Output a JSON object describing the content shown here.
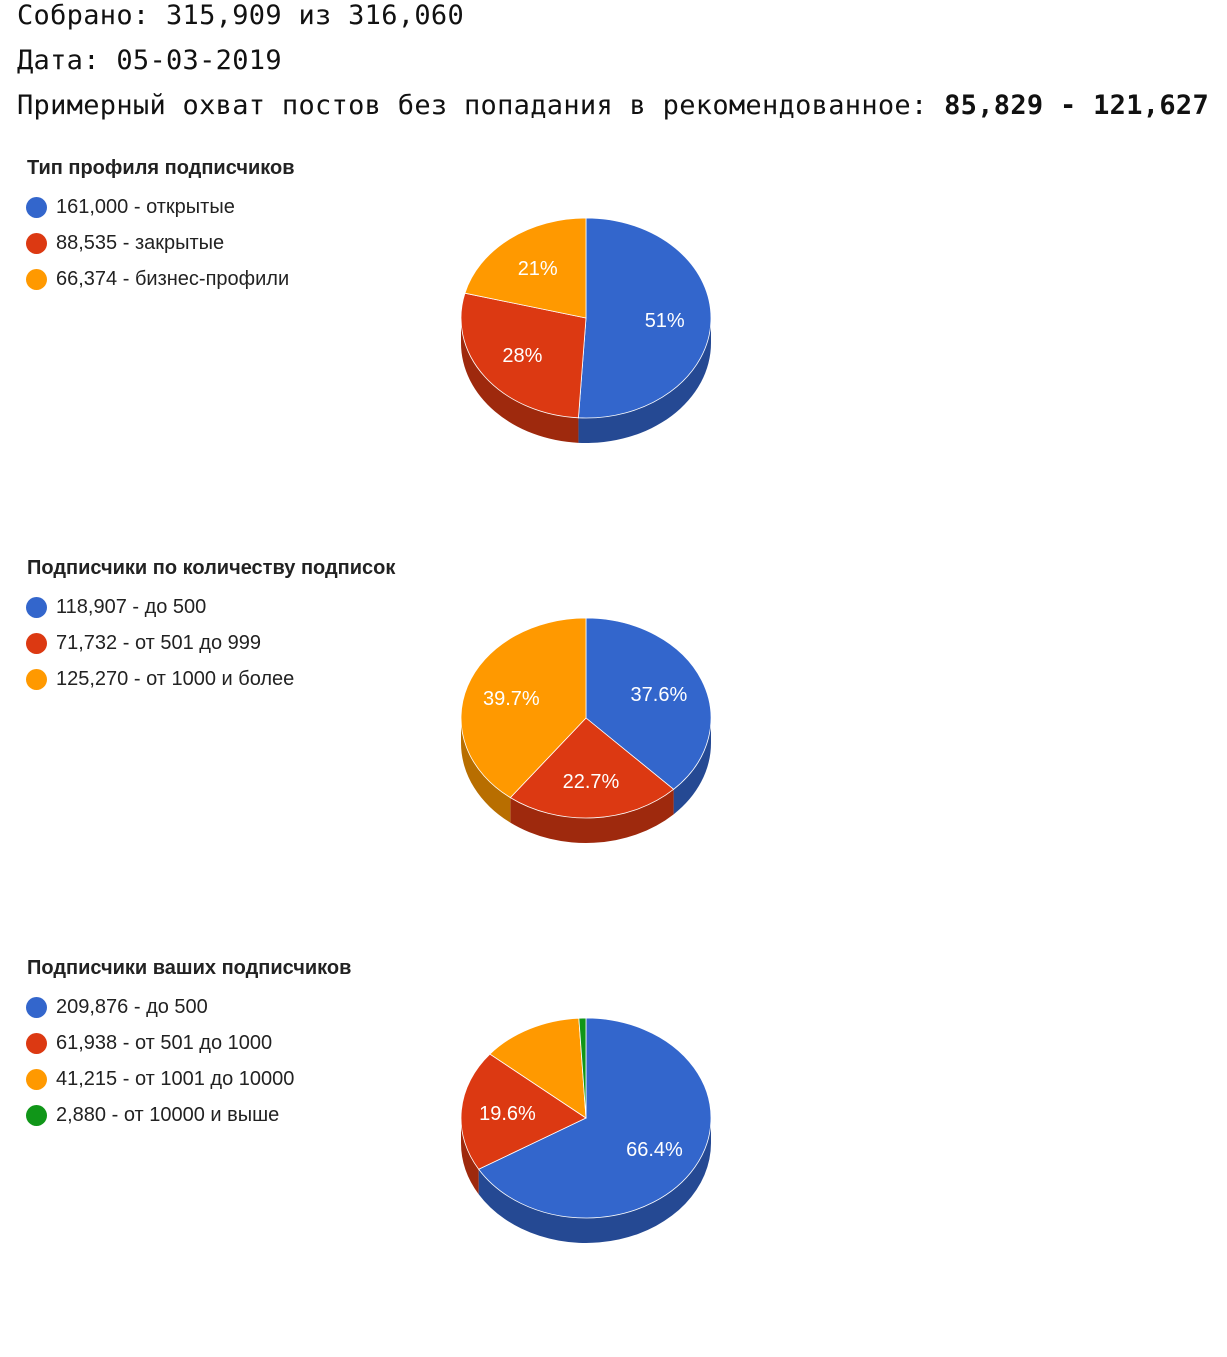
{
  "summary": {
    "collected": "Собрано: 315,909 из 316,060",
    "date": "Дата: 05-03-2019",
    "reach_label": "Примерный охват постов без попадания в рекомендованное: ",
    "reach_value": "85,829 - 121,627"
  },
  "colors": {
    "blue": "#3366cc",
    "red": "#dc3912",
    "orange": "#ff9900",
    "green": "#109618"
  },
  "chart_data": [
    {
      "type": "pie",
      "title": "Тип профиля подписчиков",
      "legend_position": "left",
      "slices": [
        {
          "label": "161,000 - открытые",
          "value": 161000,
          "percent_label": "51%",
          "color": "#3366cc"
        },
        {
          "label": "88,535 - закрытые",
          "value": 88535,
          "percent_label": "28%",
          "color": "#dc3912"
        },
        {
          "label": "66,374 - бизнес-профили",
          "value": 66374,
          "percent_label": "21%",
          "color": "#ff9900"
        }
      ]
    },
    {
      "type": "pie",
      "title": "Подписчики по количеству подписок",
      "legend_position": "left",
      "slices": [
        {
          "label": "118,907 - до 500",
          "value": 118907,
          "percent_label": "37.6%",
          "color": "#3366cc"
        },
        {
          "label": "71,732 - от 501 до 999",
          "value": 71732,
          "percent_label": "22.7%",
          "color": "#dc3912"
        },
        {
          "label": "125,270 - от 1000 и более",
          "value": 125270,
          "percent_label": "39.7%",
          "color": "#ff9900"
        }
      ]
    },
    {
      "type": "pie",
      "title": "Подписчики ваших подписчиков",
      "legend_position": "left",
      "slices": [
        {
          "label": "209,876 - до 500",
          "value": 209876,
          "percent_label": "66.4%",
          "color": "#3366cc"
        },
        {
          "label": "61,938 - от 501 до 1000",
          "value": 61938,
          "percent_label": "19.6%",
          "color": "#dc3912"
        },
        {
          "label": "41,215 - от 1001 до 10000",
          "value": 41215,
          "percent_label": "",
          "color": "#ff9900"
        },
        {
          "label": "2,880 - от 10000 и выше",
          "value": 2880,
          "percent_label": "",
          "color": "#109618"
        }
      ]
    }
  ]
}
